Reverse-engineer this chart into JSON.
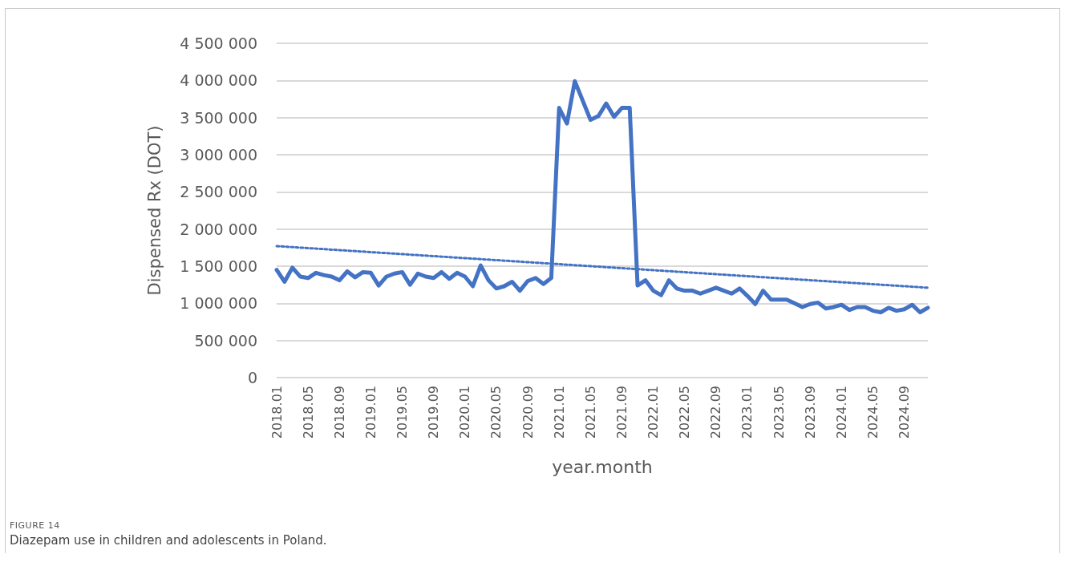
{
  "chart_data": {
    "type": "line",
    "xlabel": "year.month",
    "ylabel": "Dispensed Rx (DOT)",
    "annotations": [
      "FIGURE 14",
      "Diazepam use in children and adolescents in Poland."
    ],
    "categories": [
      "2018.01",
      null,
      null,
      null,
      "2018.05",
      null,
      null,
      null,
      "2018.09",
      null,
      null,
      null,
      "2019.01",
      null,
      null,
      null,
      "2019.05",
      null,
      null,
      null,
      "2019.09",
      null,
      null,
      null,
      "2020.01",
      null,
      null,
      null,
      "2020.05",
      null,
      null,
      null,
      "2020.09",
      null,
      null,
      null,
      "2021.01",
      null,
      null,
      null,
      "2021.05",
      null,
      null,
      null,
      "2021.09",
      null,
      null,
      null,
      "2022.01",
      null,
      null,
      null,
      "2022.05",
      null,
      null,
      null,
      "2022.09",
      null,
      null,
      null,
      "2023.01",
      null,
      null,
      null,
      "2023.05",
      null,
      null,
      null,
      "2023.09",
      null,
      null,
      null,
      "2024.01",
      null,
      null,
      null,
      "2024.05",
      null,
      null,
      null,
      "2024.09",
      null,
      null,
      null
    ],
    "series": [
      {
        "color": "#4472c4",
        "line_style": "solid",
        "values": [
          1450000,
          1290000,
          1480000,
          1360000,
          1340000,
          1410000,
          1380000,
          1360000,
          1310000,
          1430000,
          1350000,
          1420000,
          1410000,
          1240000,
          1360000,
          1400000,
          1420000,
          1250000,
          1400000,
          1360000,
          1340000,
          1420000,
          1330000,
          1410000,
          1360000,
          1230000,
          1510000,
          1310000,
          1200000,
          1230000,
          1290000,
          1170000,
          1300000,
          1340000,
          1260000,
          1340000,
          3630000,
          3420000,
          3990000,
          3730000,
          3470000,
          3520000,
          3690000,
          3510000,
          3630000,
          3630000,
          1240000,
          1310000,
          1170000,
          1110000,
          1310000,
          1200000,
          1170000,
          1170000,
          1130000,
          1170000,
          1210000,
          1170000,
          1130000,
          1200000,
          1100000,
          990000,
          1170000,
          1050000,
          1050000,
          1050000,
          1000000,
          950000,
          990000,
          1010000,
          930000,
          950000,
          980000,
          910000,
          950000,
          950000,
          900000,
          880000,
          940000,
          900000,
          920000,
          980000,
          880000,
          940000
        ]
      },
      {
        "color": "#4472c4",
        "line_style": "dotted",
        "values": [
          1770000,
          null,
          null,
          null,
          null,
          null,
          null,
          null,
          null,
          null,
          null,
          null,
          null,
          null,
          null,
          null,
          null,
          null,
          null,
          null,
          null,
          null,
          null,
          null,
          null,
          null,
          null,
          null,
          null,
          null,
          null,
          null,
          null,
          null,
          null,
          null,
          null,
          null,
          null,
          null,
          null,
          null,
          null,
          null,
          null,
          null,
          null,
          null,
          null,
          null,
          null,
          null,
          null,
          null,
          null,
          null,
          null,
          null,
          null,
          null,
          null,
          null,
          null,
          null,
          null,
          null,
          null,
          null,
          null,
          null,
          null,
          null,
          null,
          null,
          null,
          null,
          null,
          null,
          null,
          null,
          null,
          null,
          null,
          1210000
        ]
      }
    ],
    "ylim": [
      0,
      4500000
    ],
    "yticks": [
      {
        "value": 0,
        "label": "0"
      },
      {
        "value": 500000,
        "label": "500 000"
      },
      {
        "value": 1000000,
        "label": "1 000 000"
      },
      {
        "value": 1500000,
        "label": "1 500 000"
      },
      {
        "value": 2000000,
        "label": "2 000 000"
      },
      {
        "value": 2500000,
        "label": "2 500 000"
      },
      {
        "value": 3000000,
        "label": "3 000 000"
      },
      {
        "value": 3500000,
        "label": "3 500 000"
      },
      {
        "value": 4000000,
        "label": "4 000 000"
      },
      {
        "value": 4500000,
        "label": "4 500 000"
      }
    ],
    "grid": "y",
    "marker": "none"
  }
}
